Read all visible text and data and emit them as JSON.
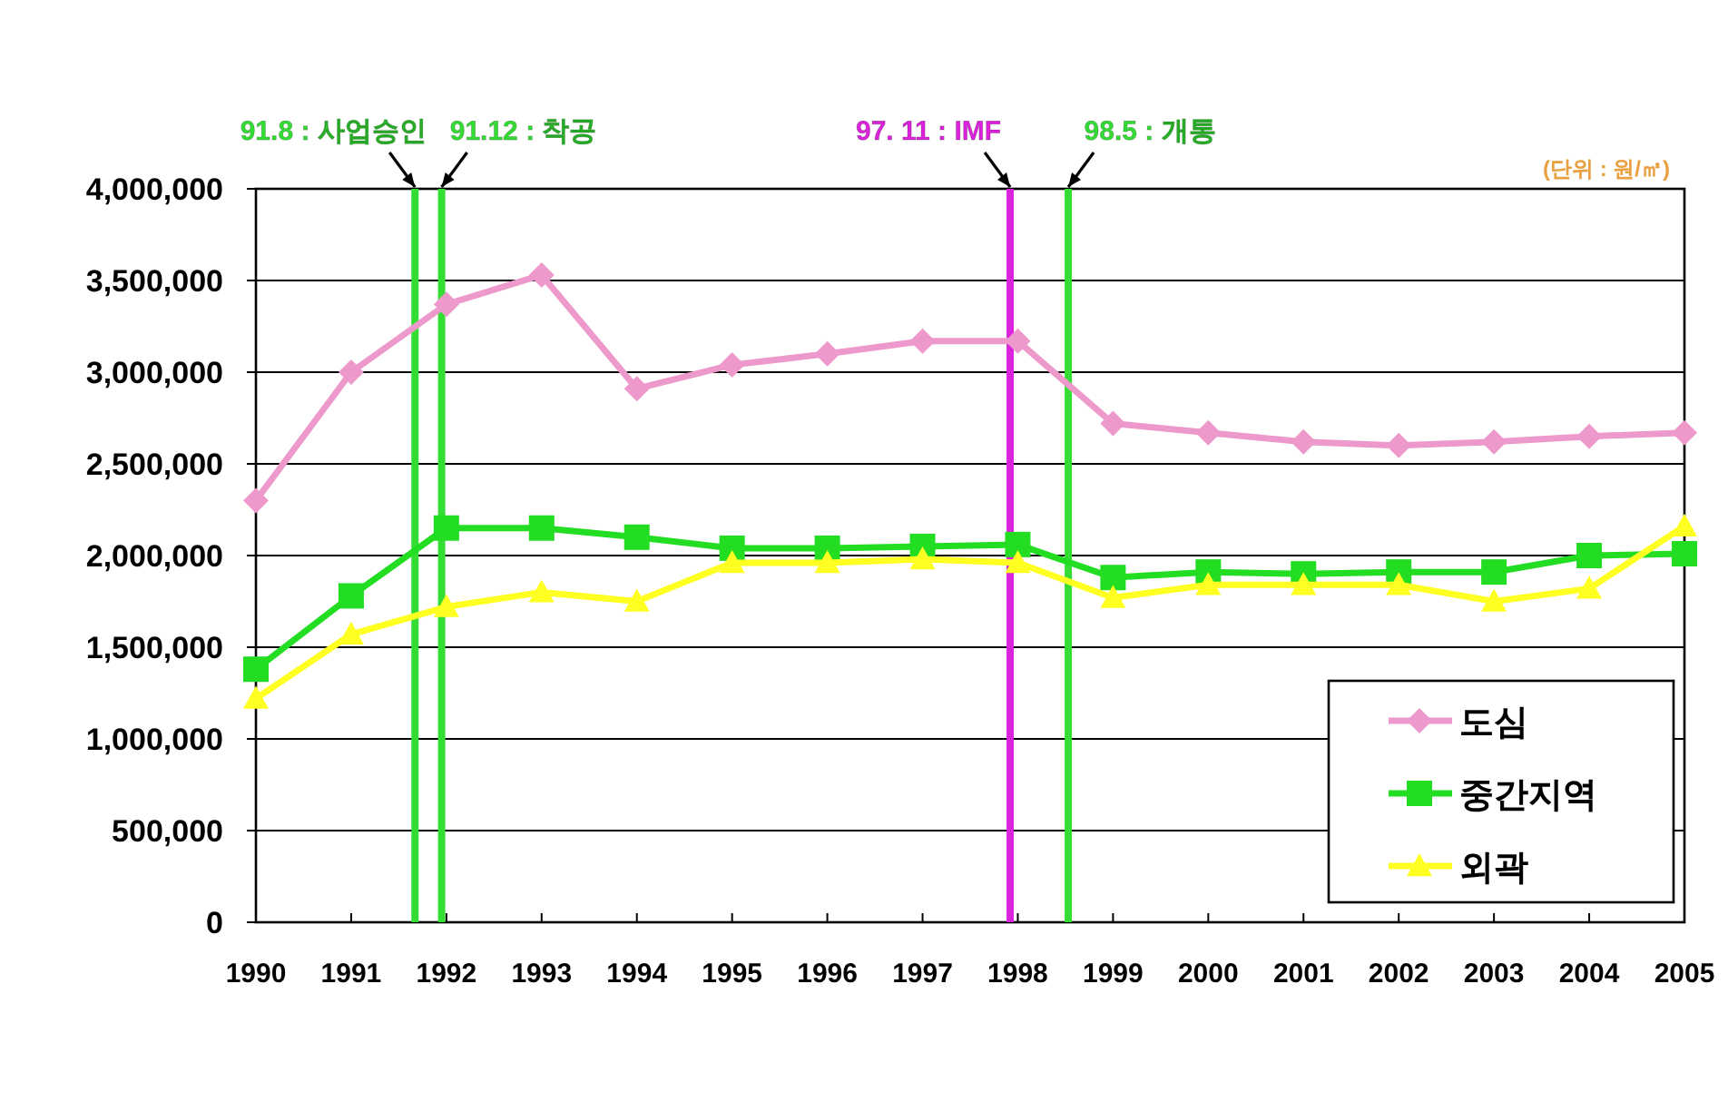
{
  "chart_data": {
    "type": "line",
    "x": [
      1990,
      1991,
      1992,
      1993,
      1994,
      1995,
      1996,
      1997,
      1998,
      1999,
      2000,
      2001,
      2002,
      2003,
      2004,
      2005
    ],
    "series": [
      {
        "name": "도심",
        "color": "#ee99cc",
        "marker": "diamond",
        "values": [
          2300000,
          3000000,
          3370000,
          3530000,
          2910000,
          3040000,
          3100000,
          3170000,
          3170000,
          2720000,
          2670000,
          2620000,
          2600000,
          2620000,
          2650000,
          2670000
        ]
      },
      {
        "name": "중간지역",
        "color": "#22dd22",
        "marker": "square",
        "values": [
          1380000,
          1780000,
          2150000,
          2150000,
          2100000,
          2040000,
          2040000,
          2050000,
          2060000,
          1880000,
          1910000,
          1900000,
          1910000,
          1910000,
          2000000,
          2010000
        ]
      },
      {
        "name": "외곽",
        "color": "#ffff22",
        "marker": "triangle",
        "values": [
          1220000,
          1570000,
          1720000,
          1800000,
          1750000,
          1960000,
          1960000,
          1980000,
          1960000,
          1770000,
          1840000,
          1840000,
          1840000,
          1750000,
          1820000,
          2160000
        ]
      }
    ],
    "xlim": [
      1990,
      2005
    ],
    "xticks": [
      1990,
      1991,
      1992,
      1993,
      1994,
      1995,
      1996,
      1997,
      1998,
      1999,
      2000,
      2001,
      2002,
      2003,
      2004,
      2005
    ],
    "ylim": [
      0,
      4000000
    ],
    "yticks": [
      {
        "value": 0,
        "label": "0"
      },
      {
        "value": 500000,
        "label": "500,000"
      },
      {
        "value": 1000000,
        "label": "1,000,000"
      },
      {
        "value": 1500000,
        "label": "1,500,000"
      },
      {
        "value": 2000000,
        "label": "2,000,000"
      },
      {
        "value": 2500000,
        "label": "2,500,000"
      },
      {
        "value": 3000000,
        "label": "3,000,000"
      },
      {
        "value": 3500000,
        "label": "3,500,000"
      },
      {
        "value": 4000000,
        "label": "4,000,000"
      }
    ],
    "ref_lines": [
      {
        "axis": "x",
        "value": 1991.67,
        "label": "91.8 : 사업승인",
        "color": "#33dd33"
      },
      {
        "axis": "x",
        "value": 1991.95,
        "label": "91.12 : 착공",
        "color": "#33dd33"
      },
      {
        "axis": "x",
        "value": 1997.92,
        "label": "97. 11 : IMF",
        "color": "#dd22dd"
      },
      {
        "axis": "x",
        "value": 1998.53,
        "label": "98.5 : 개통",
        "color": "#33dd33"
      }
    ],
    "annotations": [
      "(단위 : 원/㎡)"
    ],
    "grid": "y",
    "legend": "bottom right",
    "line_style": "solid"
  }
}
